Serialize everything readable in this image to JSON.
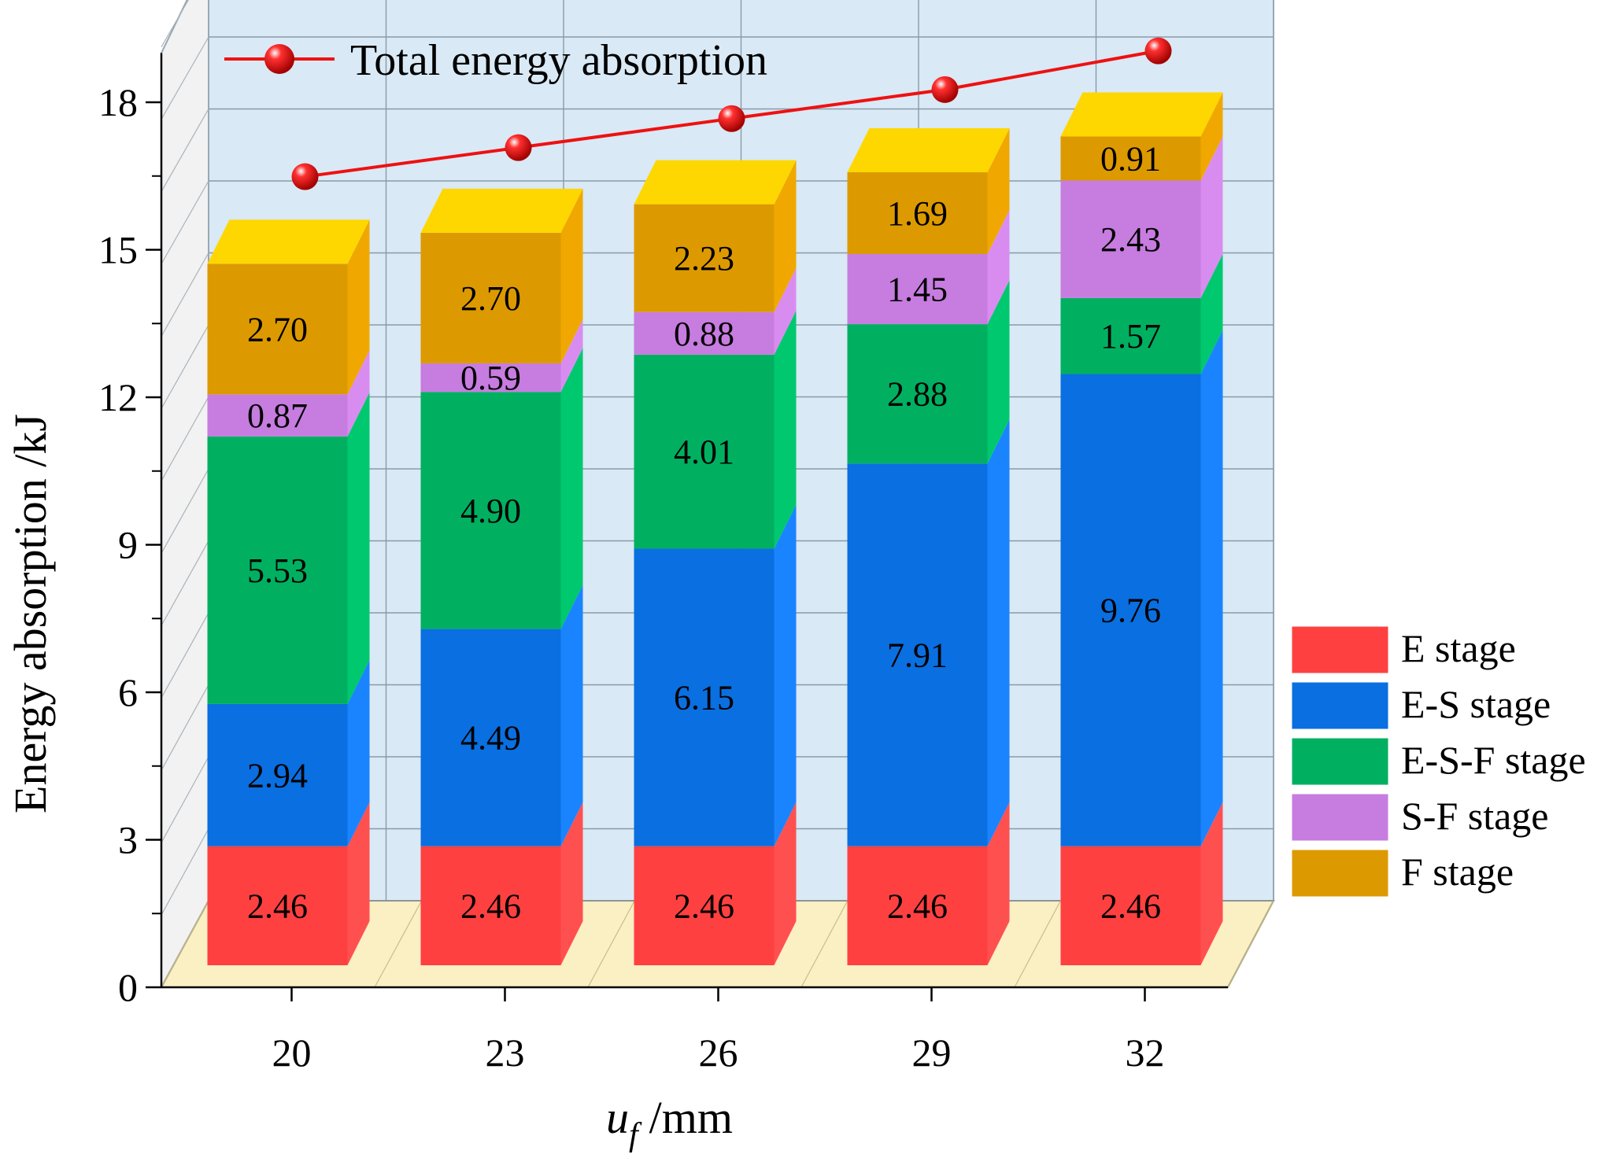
{
  "chart_data": {
    "type": "bar",
    "stacked": true,
    "three_d": true,
    "xlabel": "u",
    "xlabel_subscript": "f",
    "xlabel_unit": "/mm",
    "ylabel": "Energy absorption /kJ",
    "ylim": [
      0,
      18
    ],
    "yticks": [
      "0",
      "3",
      "6",
      "9",
      "12",
      "15",
      "18"
    ],
    "ytick_values": [
      0,
      3,
      6,
      9,
      12,
      15,
      18
    ],
    "categories": [
      "20",
      "23",
      "26",
      "29",
      "32"
    ],
    "series": [
      {
        "name": "E stage",
        "color": "#ff4040",
        "side_color": "#ff5050",
        "top_color": "#ff5a5a",
        "labels": [
          "2.46",
          "2.46",
          "2.46",
          "2.46",
          "2.46"
        ],
        "values": [
          2.46,
          2.46,
          2.46,
          2.46,
          2.46
        ]
      },
      {
        "name": "E-S stage",
        "color": "#0a6fe0",
        "side_color": "#1a84ff",
        "top_color": "#3b93ff",
        "labels": [
          "2.94",
          "4.49",
          "6.15",
          "7.91",
          "9.76"
        ],
        "values": [
          2.94,
          4.49,
          6.15,
          7.91,
          9.76
        ]
      },
      {
        "name": "E-S-F stage",
        "color": "#00b060",
        "side_color": "#00c86e",
        "top_color": "#20d080",
        "labels": [
          "5.53",
          "4.90",
          "4.01",
          "2.88",
          "1.57"
        ],
        "values": [
          5.53,
          4.9,
          4.01,
          2.88,
          1.57
        ]
      },
      {
        "name": "S-F stage",
        "color": "#c77ce0",
        "side_color": "#d98cf0",
        "top_color": "#e09cf5",
        "labels": [
          "0.87",
          "0.59",
          "0.88",
          "1.45",
          "2.43"
        ],
        "values": [
          0.87,
          0.59,
          0.88,
          1.45,
          2.43
        ]
      },
      {
        "name": "F stage",
        "color": "#dd9a00",
        "side_color": "#f0a800",
        "top_color": "#ffd700",
        "labels": [
          "2.70",
          "2.70",
          "2.23",
          "1.69",
          "0.91"
        ],
        "values": [
          2.7,
          2.7,
          2.23,
          1.69,
          0.91
        ]
      }
    ],
    "line_series": {
      "name": "Total energy absorption",
      "color": "#ee1111",
      "values": [
        16.3,
        16.9,
        17.5,
        18.1,
        18.9
      ]
    },
    "legend_position": "right",
    "line_legend_position": "top-left",
    "grid": true,
    "colors": {
      "back_wall": "#d9e9f5",
      "grid": "#8a9aa8",
      "floor": "#fbefc4",
      "left_wall": "#f2f2f2"
    }
  }
}
